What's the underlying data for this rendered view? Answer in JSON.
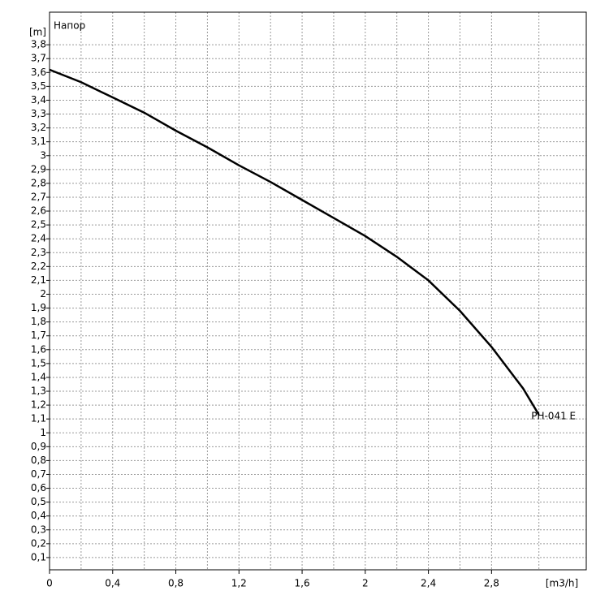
{
  "chart_data": {
    "type": "line",
    "y_label": "Напор",
    "y_unit": "[m]",
    "x_unit": "[m3/h]",
    "x": [
      0,
      0.2,
      0.4,
      0.6,
      0.8,
      1.0,
      1.2,
      1.4,
      1.6,
      1.8,
      2.0,
      2.2,
      2.4,
      2.6,
      2.8,
      3.0,
      3.1
    ],
    "series": [
      {
        "name": "PH-041 E",
        "color": "#000000",
        "values": [
          3.62,
          3.53,
          3.42,
          3.31,
          3.18,
          3.06,
          2.93,
          2.81,
          2.68,
          2.55,
          2.42,
          2.27,
          2.1,
          1.88,
          1.62,
          1.32,
          1.13
        ]
      }
    ],
    "xlim": [
      0,
      3.4
    ],
    "ylim": [
      0,
      4.0
    ],
    "xticks": [
      0,
      {
        "value": 0.4,
        "label": "0,4"
      },
      {
        "value": 0.8,
        "label": "0,8"
      },
      {
        "value": 1.2,
        "label": "1,2"
      },
      {
        "value": 1.6,
        "label": "1,6"
      },
      2,
      {
        "value": 2.4,
        "label": "2,4"
      },
      {
        "value": 2.8,
        "label": "2,8"
      }
    ],
    "yticks": [
      {
        "value": 0.1,
        "label": "0,1"
      },
      {
        "value": 0.2,
        "label": "0,2"
      },
      {
        "value": 0.3,
        "label": "0,3"
      },
      {
        "value": 0.4,
        "label": "0,4"
      },
      {
        "value": 0.5,
        "label": "0,5"
      },
      {
        "value": 0.6,
        "label": "0,6"
      },
      {
        "value": 0.7,
        "label": "0,7"
      },
      {
        "value": 0.8,
        "label": "0,8"
      },
      {
        "value": 0.9,
        "label": "0,9"
      },
      1,
      {
        "value": 1.1,
        "label": "1,1"
      },
      {
        "value": 1.2,
        "label": "1,2"
      },
      {
        "value": 1.3,
        "label": "1,3"
      },
      {
        "value": 1.4,
        "label": "1,4"
      },
      {
        "value": 1.5,
        "label": "1,5"
      },
      {
        "value": 1.6,
        "label": "1,6"
      },
      {
        "value": 1.7,
        "label": "1,7"
      },
      {
        "value": 1.8,
        "label": "1,8"
      },
      {
        "value": 1.9,
        "label": "1,9"
      },
      2,
      {
        "value": 2.1,
        "label": "2,1"
      },
      {
        "value": 2.2,
        "label": "2,2"
      },
      {
        "value": 2.3,
        "label": "2,3"
      },
      {
        "value": 2.4,
        "label": "2,4"
      },
      {
        "value": 2.5,
        "label": "2,5"
      },
      {
        "value": 2.6,
        "label": "2,6"
      },
      {
        "value": 2.7,
        "label": "2,7"
      },
      {
        "value": 2.8,
        "label": "2,8"
      },
      {
        "value": 2.9,
        "label": "2,9"
      },
      3,
      {
        "value": 3.1,
        "label": "3,1"
      },
      {
        "value": 3.2,
        "label": "3,2"
      },
      {
        "value": 3.3,
        "label": "3,3"
      },
      {
        "value": 3.4,
        "label": "3,4"
      },
      {
        "value": 3.5,
        "label": "3,5"
      },
      {
        "value": 3.6,
        "label": "3,6"
      },
      {
        "value": 3.7,
        "label": "3,7"
      },
      {
        "value": 3.8,
        "label": "3,8"
      }
    ],
    "grid": true
  }
}
